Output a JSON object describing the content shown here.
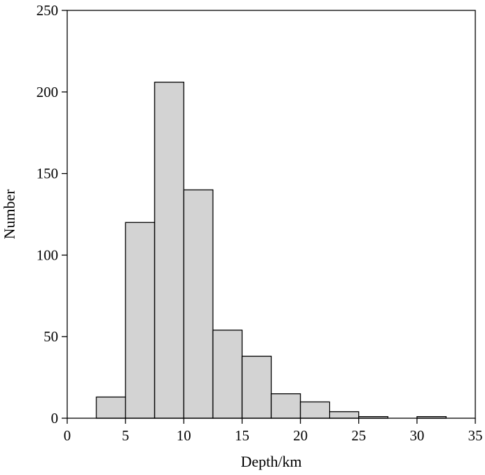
{
  "chart_data": {
    "type": "bar",
    "xlabel": "Depth/km",
    "ylabel": "Number",
    "xlim": [
      0,
      35
    ],
    "ylim": [
      0,
      250
    ],
    "xticks": [
      0,
      5,
      10,
      15,
      20,
      25,
      30,
      35
    ],
    "yticks": [
      0,
      50,
      100,
      150,
      200,
      250
    ],
    "bin_width": 2.5,
    "bins": [
      {
        "start": 2.5,
        "value": 13
      },
      {
        "start": 5.0,
        "value": 120
      },
      {
        "start": 7.5,
        "value": 206
      },
      {
        "start": 10.0,
        "value": 140
      },
      {
        "start": 12.5,
        "value": 54
      },
      {
        "start": 15.0,
        "value": 38
      },
      {
        "start": 17.5,
        "value": 15
      },
      {
        "start": 20.0,
        "value": 10
      },
      {
        "start": 22.5,
        "value": 4
      },
      {
        "start": 25.0,
        "value": 1
      },
      {
        "start": 27.5,
        "value": 0
      },
      {
        "start": 30.0,
        "value": 1
      }
    ],
    "bar_color": "#d3d3d3",
    "edge_color": "#000000",
    "grid": false
  }
}
